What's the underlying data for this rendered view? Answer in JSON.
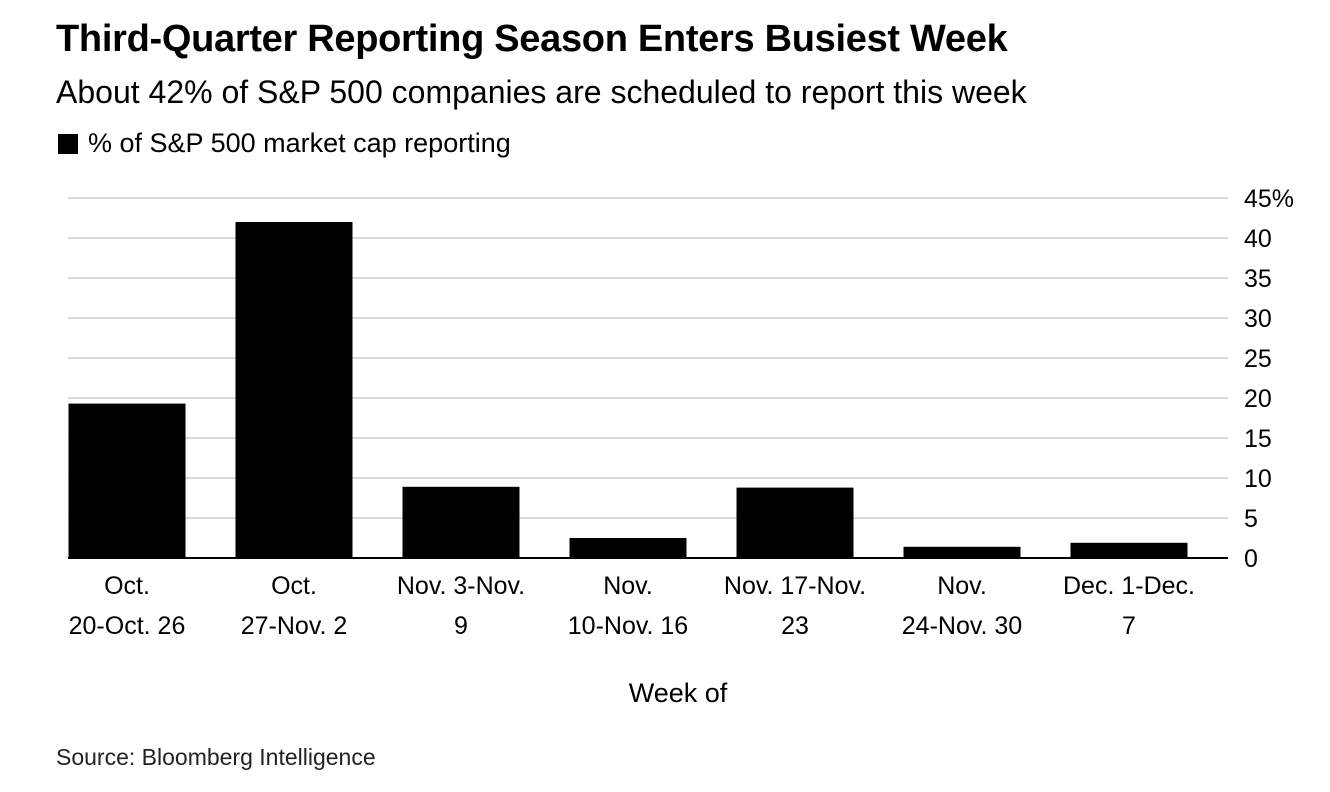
{
  "chart_data": {
    "type": "bar",
    "title": "Third-Quarter Reporting Season Enters Busiest Week",
    "subtitle": "About 42% of S&P 500 companies are scheduled to report this week",
    "legend": {
      "label": "% of S&P 500 market cap reporting",
      "color": "#000000",
      "placement": "top-left"
    },
    "categories": [
      [
        "Oct.",
        "20-Oct. 26"
      ],
      [
        "Oct.",
        "27-Nov. 2"
      ],
      [
        "Nov. 3-Nov.",
        "9"
      ],
      [
        "Nov.",
        "10-Nov. 16"
      ],
      [
        "Nov. 17-Nov.",
        "23"
      ],
      [
        "Nov.",
        "24-Nov. 30"
      ],
      [
        "Dec. 1-Dec.",
        "7"
      ]
    ],
    "series": [
      {
        "name": "% of S&P 500 market cap reporting",
        "values": [
          19.3,
          42,
          8.9,
          2.5,
          8.8,
          1.4,
          1.9
        ]
      }
    ],
    "xlabel": "Week of",
    "ylabel": "",
    "ylim": [
      0,
      45
    ],
    "yticks": [
      "0",
      "5",
      "10",
      "15",
      "20",
      "25",
      "30",
      "35",
      "40",
      "45%"
    ],
    "ytick_values": [
      0,
      5,
      10,
      15,
      20,
      25,
      30,
      35,
      40,
      45
    ],
    "grid": true,
    "bar_color": "#000000",
    "grid_color": "#d9d9d9"
  },
  "source": "Source: Bloomberg Intelligence"
}
